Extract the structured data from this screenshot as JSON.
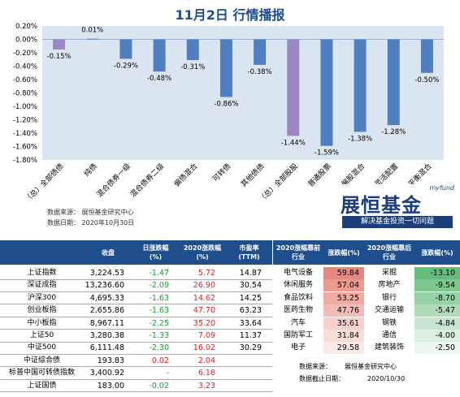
{
  "chart_data": {
    "type": "bar",
    "title": "11月2日 行情播报",
    "categories": [
      "（总）全部债债",
      "纯债",
      "混合债券一级",
      "混合债券二级",
      "偏债混合",
      "可转债",
      "其他债债",
      "（总）全部股股",
      "普通股票",
      "偏股混合",
      "灵活配置",
      "平衡混合"
    ],
    "values": [
      -0.15,
      0.01,
      -0.29,
      -0.48,
      -0.31,
      -0.86,
      -0.38,
      -1.44,
      -1.59,
      -1.38,
      -1.28,
      -0.5
    ],
    "value_labels": [
      "-0.15%",
      "0.01%",
      "-0.29%",
      "-0.48%",
      "-0.31%",
      "-0.86%",
      "-0.38%",
      "-1.44%",
      "-1.59%",
      "-1.38%",
      "-1.28%",
      "-0.50%"
    ],
    "highlight": [
      0,
      7
    ],
    "ylim": [
      -1.8,
      0.2
    ],
    "yticks": [
      "0.20%",
      "0.00%",
      "-0.20%",
      "-0.40%",
      "-0.60%",
      "-0.80%",
      "-1.00%",
      "-1.20%",
      "-1.40%",
      "-1.60%",
      "-1.80%"
    ],
    "colors": {
      "bar": "#4f7fc0",
      "highlight": "#9b87c4",
      "plot_bg": "#dbe5f1",
      "title": "#1f4e8c"
    }
  },
  "source": {
    "line1": "数据来源：  展恒基金研究中心",
    "line2": "数据日期：  2020年10月30日"
  },
  "brand": {
    "tag": "myfund",
    "name": "展恒基金",
    "slogan": "解决基金投资一切问题"
  },
  "table": {
    "headers": {
      "index": "",
      "close": "收盘",
      "day": "日涨跌幅\n(%)",
      "ytd": "2020涨跌幅\n(%)",
      "pe": "市盈率\n(TTM)",
      "top_ind": "2020涨幅靠前\n行业",
      "top_chg": "涨跌幅(%)",
      "bot_ind": "2020涨幅靠后\n行业",
      "bot_chg": "涨跌幅(%)"
    },
    "rows": [
      {
        "name": "上证指数",
        "close": "3,224.53",
        "day": "-1.47",
        "ytd": "5.72",
        "pe": "14.87"
      },
      {
        "name": "深证成指",
        "close": "13,236.60",
        "day": "-2.09",
        "ytd": "26.90",
        "pe": "30.54"
      },
      {
        "name": "沪深300",
        "close": "4,695.33",
        "day": "-1.63",
        "ytd": "14.62",
        "pe": "14.25"
      },
      {
        "name": "创业板指",
        "close": "2,655.86",
        "day": "-1.63",
        "ytd": "47.70",
        "pe": "63.23"
      },
      {
        "name": "中小板指",
        "close": "8,967.11",
        "day": "-2.25",
        "ytd": "35.20",
        "pe": "33.64"
      },
      {
        "name": "上证50",
        "close": "3,280.38",
        "day": "-1.33",
        "ytd": "7.09",
        "pe": "11.37"
      },
      {
        "name": "中证500",
        "close": "6,111.48",
        "day": "-2.30",
        "ytd": "16.02",
        "pe": "30.29"
      },
      {
        "name": "中证综合债",
        "close": "193.83",
        "day": "0.02",
        "ytd": "2.04",
        "pe": ""
      },
      {
        "name": "标普中国可转债指数",
        "close": "3,400.92",
        "day": "-",
        "ytd": "6.18",
        "pe": ""
      },
      {
        "name": "上证国债",
        "close": "183.00",
        "day": "-0.02",
        "ytd": "3.23",
        "pe": ""
      }
    ],
    "top": [
      {
        "ind": "电气设备",
        "chg": "59.84"
      },
      {
        "ind": "休闲服务",
        "chg": "57.04"
      },
      {
        "ind": "食品饮料",
        "chg": "53.25"
      },
      {
        "ind": "医药生物",
        "chg": "47.76"
      },
      {
        "ind": "汽车",
        "chg": "35.61"
      },
      {
        "ind": "国防军工",
        "chg": "31.84"
      },
      {
        "ind": "电子",
        "chg": "29.58"
      }
    ],
    "bottom": [
      {
        "ind": "采掘",
        "chg": "-13.10"
      },
      {
        "ind": "房地产",
        "chg": "-9.54"
      },
      {
        "ind": "银行",
        "chg": "-8.70"
      },
      {
        "ind": "交通运输",
        "chg": "-5.47"
      },
      {
        "ind": "钢铁",
        "chg": "-4.84"
      },
      {
        "ind": "通信",
        "chg": "-4.00"
      },
      {
        "ind": "建筑装饰",
        "chg": "-2.50"
      }
    ],
    "footer": {
      "src_label": "数据来源：",
      "src_value": "展恒基金研究中心",
      "date_label": "数据截止日期：",
      "date_value": "2020/10/30"
    }
  }
}
